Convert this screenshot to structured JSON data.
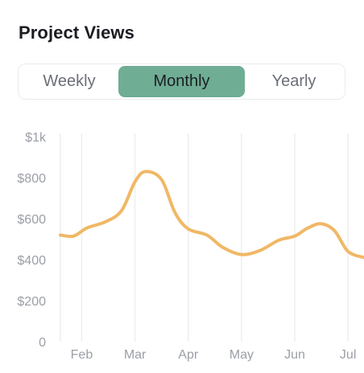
{
  "card": {
    "title": "Project Views"
  },
  "tabs": {
    "items": [
      {
        "label": "Weekly",
        "active": false
      },
      {
        "label": "Monthly",
        "active": true
      },
      {
        "label": "Yearly",
        "active": false
      }
    ]
  },
  "colors": {
    "accent": "#6fad95",
    "line": "#f0b866",
    "grid": "#eeeff1",
    "axis_text": "#9c9fa6",
    "title": "#1c1c22"
  },
  "chart_data": {
    "type": "line",
    "title": "",
    "xlabel": "",
    "ylabel": "",
    "ylim": [
      0,
      1000
    ],
    "y_ticks": [
      {
        "value": 0,
        "label": "0"
      },
      {
        "value": 200,
        "label": "$200"
      },
      {
        "value": 400,
        "label": "$400"
      },
      {
        "value": 600,
        "label": "$600"
      },
      {
        "value": 800,
        "label": "$800"
      },
      {
        "value": 1000,
        "label": "$1k"
      }
    ],
    "x_ticks": [
      {
        "value": 2,
        "label": "Feb"
      },
      {
        "value": 3,
        "label": "Mar"
      },
      {
        "value": 4,
        "label": "Apr"
      },
      {
        "value": 5,
        "label": "May"
      },
      {
        "value": 6,
        "label": "Jun"
      },
      {
        "value": 7,
        "label": "Jul"
      }
    ],
    "xlim": [
      1.6,
      7.3
    ],
    "grid": {
      "vertical": true,
      "horizontal": false
    },
    "series": [
      {
        "x": [
          1.6,
          1.85,
          2.1,
          2.45,
          2.75,
          3.0,
          3.2,
          3.5,
          3.75,
          4.0,
          4.35,
          4.65,
          5.0,
          5.35,
          5.7,
          6.0,
          6.25,
          6.5,
          6.75,
          7.0,
          7.3
        ],
        "values": [
          520,
          515,
          555,
          585,
          640,
          780,
          830,
          790,
          630,
          550,
          520,
          460,
          425,
          445,
          495,
          515,
          555,
          575,
          540,
          440,
          410
        ]
      }
    ]
  }
}
